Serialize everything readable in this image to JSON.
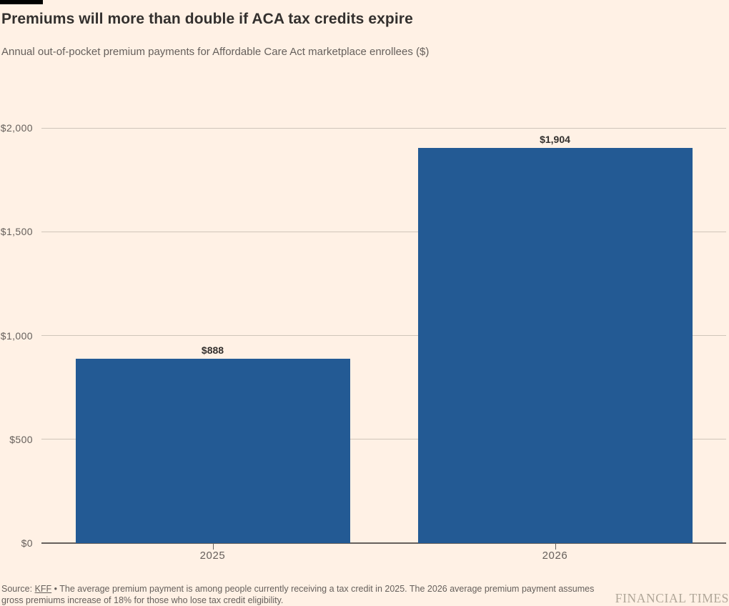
{
  "chart_data": {
    "type": "bar",
    "title": "Premiums will more than double if ACA tax credits expire",
    "subtitle": "Annual out-of-pocket premium payments for Affordable Care Act marketplace enrollees ($)",
    "categories": [
      "2025",
      "2026"
    ],
    "values": [
      888,
      1904
    ],
    "value_labels": [
      "$888",
      "$1,904"
    ],
    "xlabel": "",
    "ylabel": "",
    "ylim": [
      0,
      2000
    ],
    "yticks": [
      0,
      500,
      1000,
      1500,
      2000
    ],
    "ytick_labels": [
      "$0",
      "$500",
      "$1,000",
      "$1,500",
      "$2,000"
    ],
    "grid": "horizontal",
    "legend": "none",
    "bar_color": "#235A94"
  },
  "footer": {
    "source_prefix": "Source:",
    "source_link_label": "KFF",
    "source_text": "• The average premium payment is among people currently receiving a tax credit in 2025. The 2026 average premium payment assumes gross premiums increase of 18% for those who lose tax credit eligibility.",
    "brand_wordmark": "FINANCIAL TIMES"
  },
  "colors": {
    "background": "#FFF1E5",
    "bar": "#235A94",
    "gridline": "#CFC5BA",
    "axis_line": "#66605C",
    "title_text": "#33302E",
    "secondary_text": "#66605C",
    "brand_text": "#B0A698",
    "tag_bar": "#000000"
  }
}
